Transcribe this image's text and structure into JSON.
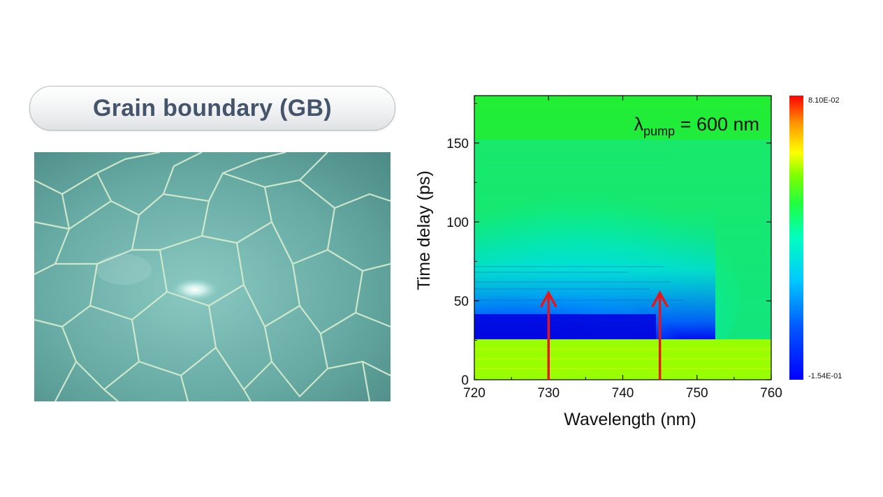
{
  "slide": {
    "title": "Grain boundary (GB)"
  },
  "micrograph": {
    "kind": "optical micrograph of grain boundaries"
  },
  "colors": {
    "title_text": "#44546a",
    "arrow": "#e8161b"
  },
  "chart_data": {
    "type": "heatmap",
    "title": "",
    "annotation": {
      "lambda": "λ",
      "subscript": "pump",
      "rest": " = 600 nm"
    },
    "xlabel": "Wavelength (nm)",
    "ylabel": "Time delay (ps)",
    "xlim": [
      720,
      760
    ],
    "ylim": [
      0,
      180
    ],
    "xticks": [
      720,
      730,
      740,
      750,
      760
    ],
    "yticks": [
      0,
      50,
      100,
      150
    ],
    "colorbar": {
      "max": 0.081,
      "min": -0.154,
      "max_label": "8.10E-02",
      "min_label": "-1.54E-01",
      "colormap": "rainbow"
    },
    "arrows_at_wavelength_nm": [
      730,
      745
    ],
    "arrow_tip_delay_ps": 55
  }
}
